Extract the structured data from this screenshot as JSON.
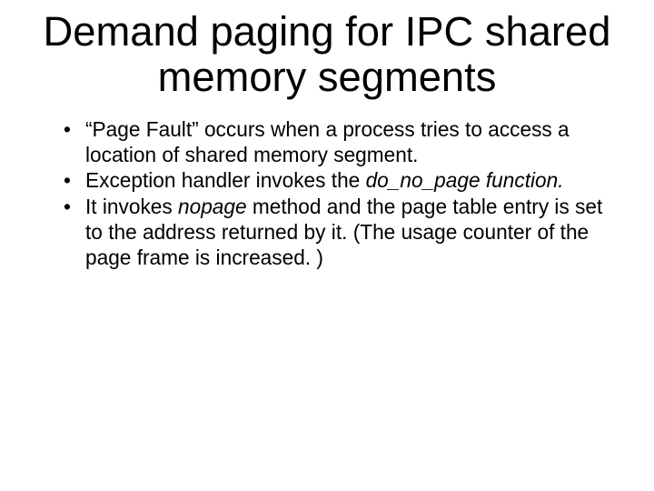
{
  "slide": {
    "background_color": "#ffffff",
    "text_color": "#000000",
    "font_family": "Arial",
    "title": {
      "text": "Demand paging for IPC shared memory segments",
      "font_size_pt": 34,
      "font_weight": 400,
      "align": "center"
    },
    "bullets": {
      "font_size_pt": 17,
      "marker": "•",
      "items": [
        {
          "runs": [
            {
              "text": "“Page Fault” occurs when a process tries to access a location of shared memory segment.",
              "italic": false
            }
          ]
        },
        {
          "runs": [
            {
              "text": "Exception handler invokes the ",
              "italic": false
            },
            {
              "text": "do_no_page function.",
              "italic": true
            }
          ]
        },
        {
          "runs": [
            {
              "text": "It invokes ",
              "italic": false
            },
            {
              "text": "nopage",
              "italic": true
            },
            {
              "text": " method and the page table entry is set to the address returned by it. (The usage counter of the page frame is increased. )",
              "italic": false
            }
          ]
        }
      ]
    }
  }
}
